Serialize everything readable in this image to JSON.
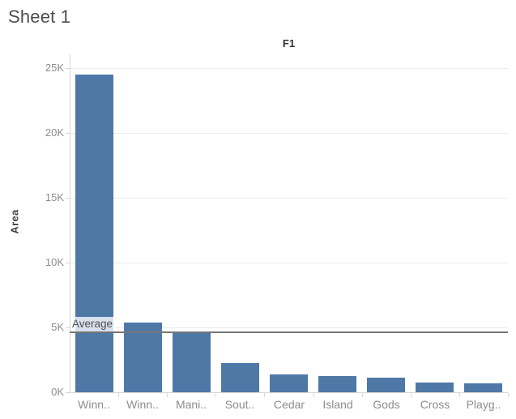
{
  "sheet_title": "Sheet 1",
  "column_header": "F1",
  "y_axis_title": "Area",
  "colors": {
    "bar": "#4e79a7",
    "gridline": "#ebebeb",
    "axis_line": "#d7d7d7",
    "reference_line": "#757575",
    "tick_text": "#8c8c8c",
    "header_text": "#333333",
    "sheet_title_text": "#4d4d4d"
  },
  "chart_data": {
    "type": "bar",
    "title": "F1",
    "xlabel": "",
    "ylabel": "Area",
    "categories": [
      "Winn..",
      "Winn..",
      "Mani..",
      "Sout..",
      "Cedar",
      "Island",
      "Gods",
      "Cross",
      "Playg.."
    ],
    "values": [
      24500,
      5400,
      4650,
      2250,
      1350,
      1230,
      1150,
      760,
      660
    ],
    "ylim": [
      0,
      25000
    ],
    "yticks": [
      0,
      5000,
      10000,
      15000,
      20000,
      25000
    ],
    "ytick_labels": [
      "0K",
      "5K",
      "10K",
      "15K",
      "20K",
      "25K"
    ],
    "grid": true,
    "legend": false,
    "bar_color": "#4e79a7",
    "reference_line": {
      "label": "Average",
      "value": 4655
    }
  }
}
